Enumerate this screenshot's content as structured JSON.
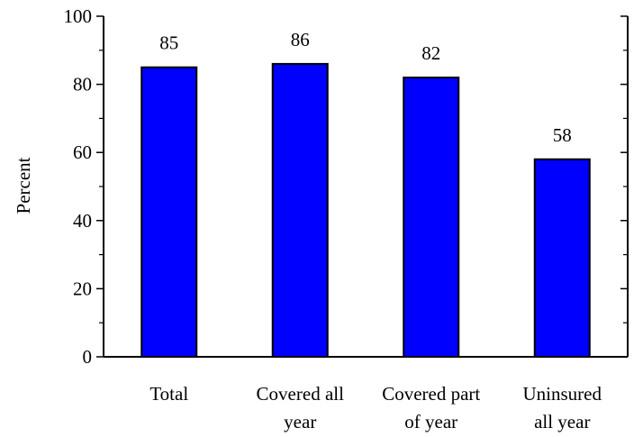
{
  "chart_data": {
    "type": "bar",
    "categories": [
      [
        "Total"
      ],
      [
        "Covered all",
        "year"
      ],
      [
        "Covered part",
        "of year"
      ],
      [
        "Uninsured",
        "all year"
      ]
    ],
    "values": [
      85,
      86,
      82,
      58
    ],
    "data_labels": [
      "85",
      "86",
      "82",
      "58"
    ],
    "title": "",
    "xlabel": "",
    "ylabel": "Percent",
    "ylim": [
      0,
      100
    ],
    "y_major_ticks": [
      0,
      20,
      40,
      60,
      80,
      100
    ],
    "y_tick_labels": [
      "0",
      "20",
      "40",
      "60",
      "80",
      "100"
    ],
    "y_minor_ticks": [
      10,
      30,
      50,
      70,
      90
    ],
    "grid": false,
    "legend": "none",
    "colors": {
      "bar_fill": "#0000ff",
      "bar_stroke": "#000000",
      "axis": "#000000",
      "text": "#000000"
    }
  }
}
